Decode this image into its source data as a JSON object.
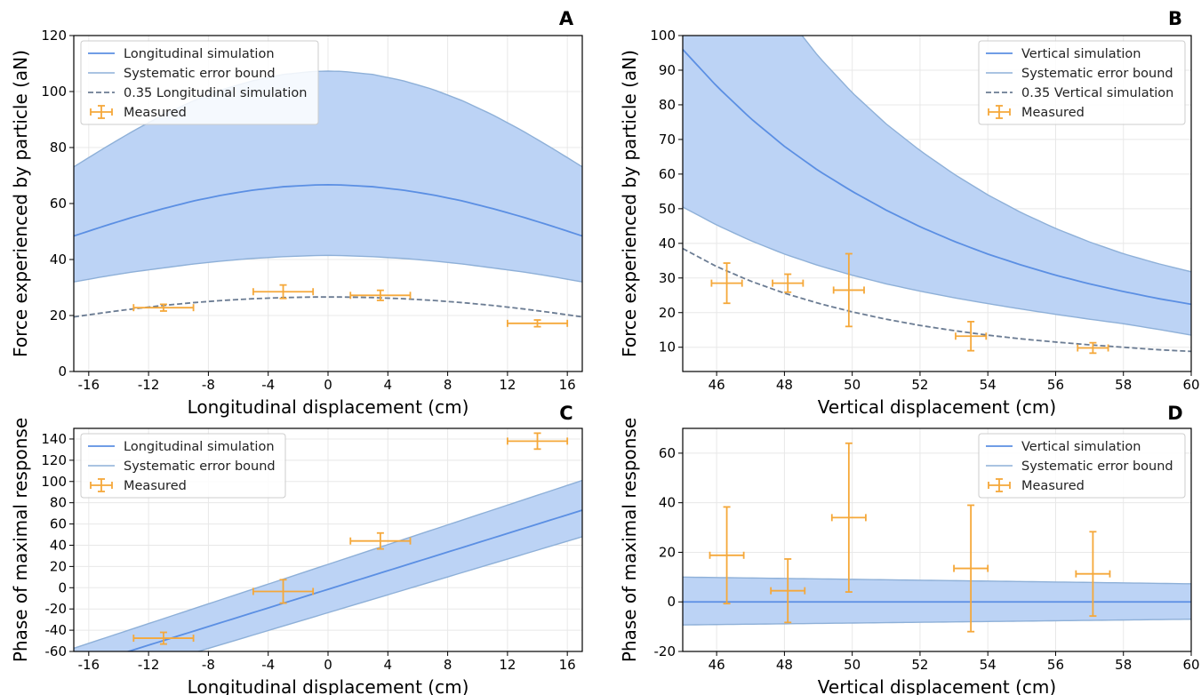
{
  "colors": {
    "simulation": "#5b8fe3",
    "bound_line": "#8eb0d8",
    "band_fill": "#bcd3f5",
    "scaled": "#6b7c93",
    "measured": "#f5a83a",
    "grid": "#e8e8e8"
  },
  "chart_data": [
    {
      "id": "A",
      "type": "line",
      "panel_label": "A",
      "xlabel": "Longitudinal displacement (cm)",
      "ylabel": "Force experienced by particle (aN)",
      "xlim": [
        -17,
        17
      ],
      "ylim": [
        0,
        120
      ],
      "xticks": [
        -16,
        -12,
        -8,
        -4,
        0,
        4,
        8,
        12,
        16
      ],
      "yticks": [
        0,
        20,
        40,
        60,
        80,
        100,
        120
      ],
      "grid": true,
      "legend_position": "top-left",
      "legend": [
        "Longitudinal simulation",
        "Systematic error bound",
        "0.35 Longitudinal simulation",
        "Measured"
      ],
      "curve_x": [
        -17,
        -15,
        -13,
        -11,
        -9,
        -7,
        -5,
        -3,
        -1,
        0,
        1,
        3,
        5,
        7,
        9,
        11,
        13,
        15,
        17
      ],
      "simulation": [
        48.4,
        51.9,
        55.2,
        58.2,
        60.9,
        63.1,
        64.8,
        66.0,
        66.6,
        66.7,
        66.6,
        66.0,
        64.8,
        63.1,
        60.9,
        58.2,
        55.2,
        51.9,
        48.4
      ],
      "upper_bound": [
        73.1,
        79.7,
        86.0,
        91.7,
        96.7,
        100.8,
        103.9,
        106.1,
        107.2,
        107.3,
        107.2,
        106.1,
        103.9,
        100.8,
        96.7,
        91.7,
        86.0,
        79.7,
        73.1
      ],
      "lower_bound": [
        32.0,
        33.9,
        35.6,
        37.0,
        38.4,
        39.5,
        40.4,
        41.0,
        41.4,
        41.5,
        41.4,
        41.0,
        40.4,
        39.5,
        38.4,
        37.0,
        35.6,
        33.9,
        32.0
      ],
      "scaled": [
        19.5,
        21.0,
        22.4,
        23.6,
        24.6,
        25.4,
        26.0,
        26.4,
        26.6,
        26.6,
        26.6,
        26.4,
        26.0,
        25.4,
        24.6,
        23.6,
        22.4,
        21.0,
        19.5
      ],
      "measured": [
        {
          "x": -11,
          "y": 22.8,
          "xerr": 2,
          "yerr": 1.2
        },
        {
          "x": -3,
          "y": 28.5,
          "xerr": 2,
          "yerr": 2.4
        },
        {
          "x": 3.5,
          "y": 27.2,
          "xerr": 2,
          "yerr": 1.8
        },
        {
          "x": 14,
          "y": 17.2,
          "xerr": 2,
          "yerr": 1.2
        }
      ]
    },
    {
      "id": "B",
      "type": "line",
      "panel_label": "B",
      "xlabel": "Vertical displacement (cm)",
      "ylabel": "Force experienced by particle (aN)",
      "xlim": [
        45,
        60
      ],
      "ylim": [
        3,
        100
      ],
      "xticks": [
        46,
        48,
        50,
        52,
        54,
        56,
        58,
        60
      ],
      "yticks": [
        10,
        20,
        30,
        40,
        50,
        60,
        70,
        80,
        90,
        100
      ],
      "grid": true,
      "legend_position": "top-right",
      "legend": [
        "Vertical simulation",
        "Systematic error bound",
        "0.35 Vertical simulation",
        "Measured"
      ],
      "curve_x": [
        45,
        46,
        47,
        48,
        49,
        50,
        51,
        52,
        53,
        54,
        55,
        56,
        57,
        58,
        59,
        60
      ],
      "simulation": [
        96.0,
        85.4,
        76.1,
        68.0,
        61.0,
        55.0,
        49.6,
        44.8,
        40.6,
        36.9,
        33.7,
        30.8,
        28.3,
        26.1,
        24.1,
        22.4
      ],
      "upper_bound": [
        160.0,
        138.0,
        121.0,
        106.5,
        94.0,
        83.5,
        74.5,
        66.8,
        60.0,
        54.0,
        48.8,
        44.3,
        40.4,
        37.0,
        34.2,
        31.8
      ],
      "lower_bound": [
        50.5,
        45.3,
        40.8,
        36.9,
        33.6,
        30.8,
        28.3,
        26.2,
        24.3,
        22.6,
        21.0,
        19.5,
        18.1,
        16.8,
        15.2,
        13.5
      ],
      "scaled": [
        38.5,
        33.3,
        29.1,
        25.6,
        22.7,
        20.2,
        18.1,
        16.3,
        14.8,
        13.5,
        12.4,
        11.5,
        10.7,
        10.0,
        9.3,
        8.8
      ],
      "measured": [
        {
          "x": 46.3,
          "y": 28.5,
          "xerr": 0.45,
          "yerr": 5.8
        },
        {
          "x": 48.1,
          "y": 28.5,
          "xerr": 0.45,
          "yerr": 2.6
        },
        {
          "x": 49.9,
          "y": 26.5,
          "xerr": 0.45,
          "yerr": 10.5
        },
        {
          "x": 53.5,
          "y": 13.2,
          "xerr": 0.45,
          "yerr": 4.2
        },
        {
          "x": 57.1,
          "y": 9.8,
          "xerr": 0.45,
          "yerr": 1.5
        }
      ]
    },
    {
      "id": "C",
      "type": "line",
      "panel_label": "C",
      "xlabel": "Longitudinal displacement (cm)",
      "ylabel": "Phase of maximal response",
      "xlim": [
        -17,
        17
      ],
      "ylim": [
        -60,
        150
      ],
      "xticks": [
        -16,
        -12,
        -8,
        -4,
        0,
        4,
        8,
        12,
        16
      ],
      "yticks": [
        -60,
        -40,
        -20,
        0,
        20,
        40,
        60,
        80,
        100,
        120,
        140
      ],
      "grid": true,
      "legend_position": "top-left",
      "legend": [
        "Longitudinal simulation",
        "Systematic error bound",
        "Measured"
      ],
      "curve_x": [
        -17,
        17
      ],
      "simulation": [
        -76,
        73
      ],
      "upper_bound": [
        -57,
        101
      ],
      "lower_bound": [
        -95,
        48
      ],
      "measured": [
        {
          "x": -11,
          "y": -47.5,
          "xerr": 2,
          "yerr": 5.5
        },
        {
          "x": -3,
          "y": -3.5,
          "xerr": 2,
          "yerr": 11
        },
        {
          "x": 3.5,
          "y": 44,
          "xerr": 2,
          "yerr": 7.5
        },
        {
          "x": 14,
          "y": 138,
          "xerr": 2,
          "yerr": 7.5
        }
      ]
    },
    {
      "id": "D",
      "type": "line",
      "panel_label": "D",
      "xlabel": "Vertical displacement (cm)",
      "ylabel": "Phase of maximal response",
      "xlim": [
        45,
        60
      ],
      "ylim": [
        -20,
        70
      ],
      "xticks": [
        46,
        48,
        50,
        52,
        54,
        56,
        58,
        60
      ],
      "yticks": [
        -20,
        0,
        20,
        40,
        60
      ],
      "grid": true,
      "legend_position": "top-right",
      "legend": [
        "Vertical simulation",
        "Systematic error bound",
        "Measured"
      ],
      "curve_x": [
        45,
        60
      ],
      "simulation": [
        0,
        0
      ],
      "upper_bound": [
        10,
        7.3
      ],
      "lower_bound": [
        -9.3,
        -7
      ],
      "measured": [
        {
          "x": 46.3,
          "y": 18.8,
          "xerr": 0.5,
          "yerr": 19.5
        },
        {
          "x": 48.1,
          "y": 4.5,
          "xerr": 0.5,
          "yerr": 12.8
        },
        {
          "x": 49.9,
          "y": 34,
          "xerr": 0.5,
          "yerr": 30
        },
        {
          "x": 53.5,
          "y": 13.5,
          "xerr": 0.5,
          "yerr": 25.5
        },
        {
          "x": 57.1,
          "y": 11.3,
          "xerr": 0.5,
          "yerr": 17
        }
      ]
    }
  ]
}
